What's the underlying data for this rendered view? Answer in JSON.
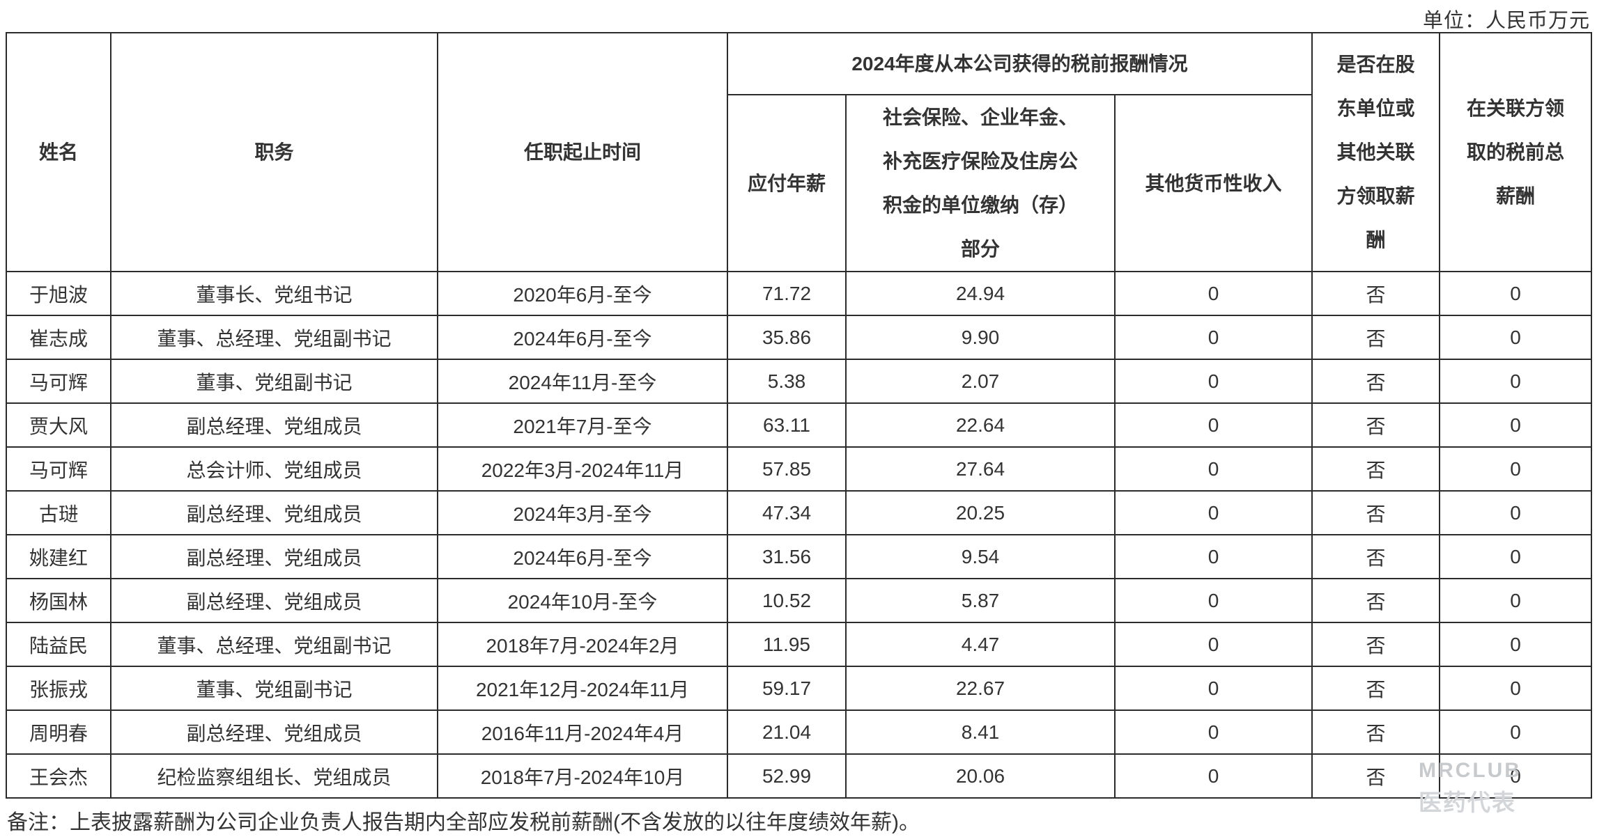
{
  "unit_label": "单位：人民币万元",
  "table": {
    "headers": {
      "name": "姓名",
      "position": "职务",
      "term": "任职起止时间",
      "comp_group": "2024年度从本公司获得的税前报酬情况",
      "salary": "应付年薪",
      "social": "社会保险、企业年金、\n补充医疗保险及住房公\n积金的单位缴纳（存）\n部分",
      "other_income": "其他货币性收入",
      "related_party_flag": "是否在股\n东单位或\n其他关联\n方领取薪\n酬",
      "related_party_comp": "在关联方领\n取的税前总\n薪酬"
    },
    "rows": [
      {
        "name": "于旭波",
        "position": "董事长、党组书记",
        "term": "2020年6月-至今",
        "salary": "71.72",
        "social": "24.94",
        "other_income": "0",
        "flag": "否",
        "related_comp": "0"
      },
      {
        "name": "崔志成",
        "position": "董事、总经理、党组副书记",
        "term": "2024年6月-至今",
        "salary": "35.86",
        "social": "9.90",
        "other_income": "0",
        "flag": "否",
        "related_comp": "0"
      },
      {
        "name": "马可辉",
        "position": "董事、党组副书记",
        "term": "2024年11月-至今",
        "salary": "5.38",
        "social": "2.07",
        "other_income": "0",
        "flag": "否",
        "related_comp": "0"
      },
      {
        "name": "贾大风",
        "position": "副总经理、党组成员",
        "term": "2021年7月-至今",
        "salary": "63.11",
        "social": "22.64",
        "other_income": "0",
        "flag": "否",
        "related_comp": "0"
      },
      {
        "name": "马可辉",
        "position": "总会计师、党组成员",
        "term": "2022年3月-2024年11月",
        "salary": "57.85",
        "social": "27.64",
        "other_income": "0",
        "flag": "否",
        "related_comp": "0"
      },
      {
        "name": "古琎",
        "position": "副总经理、党组成员",
        "term": "2024年3月-至今",
        "salary": "47.34",
        "social": "20.25",
        "other_income": "0",
        "flag": "否",
        "related_comp": "0"
      },
      {
        "name": "姚建红",
        "position": "副总经理、党组成员",
        "term": "2024年6月-至今",
        "salary": "31.56",
        "social": "9.54",
        "other_income": "0",
        "flag": "否",
        "related_comp": "0"
      },
      {
        "name": "杨国林",
        "position": "副总经理、党组成员",
        "term": "2024年10月-至今",
        "salary": "10.52",
        "social": "5.87",
        "other_income": "0",
        "flag": "否",
        "related_comp": "0"
      },
      {
        "name": "陆益民",
        "position": "董事、总经理、党组副书记",
        "term": "2018年7月-2024年2月",
        "salary": "11.95",
        "social": "4.47",
        "other_income": "0",
        "flag": "否",
        "related_comp": "0"
      },
      {
        "name": "张振戎",
        "position": "董事、党组副书记",
        "term": "2021年12月-2024年11月",
        "salary": "59.17",
        "social": "22.67",
        "other_income": "0",
        "flag": "否",
        "related_comp": "0"
      },
      {
        "name": "周明春",
        "position": "副总经理、党组成员",
        "term": "2016年11月-2024年4月",
        "salary": "21.04",
        "social": "8.41",
        "other_income": "0",
        "flag": "否",
        "related_comp": "0"
      },
      {
        "name": "王会杰",
        "position": "纪检监察组组长、党组成员",
        "term": "2018年7月-2024年10月",
        "salary": "52.99",
        "social": "20.06",
        "other_income": "0",
        "flag": "否",
        "related_comp": "0"
      }
    ]
  },
  "footnote": "备注：上表披露薪酬为公司企业负责人报告期内全部应发税前薪酬(不含发放的以往年度绩效年薪)。",
  "watermark": {
    "line1": "MRCLUB",
    "line2": "医药代表"
  }
}
